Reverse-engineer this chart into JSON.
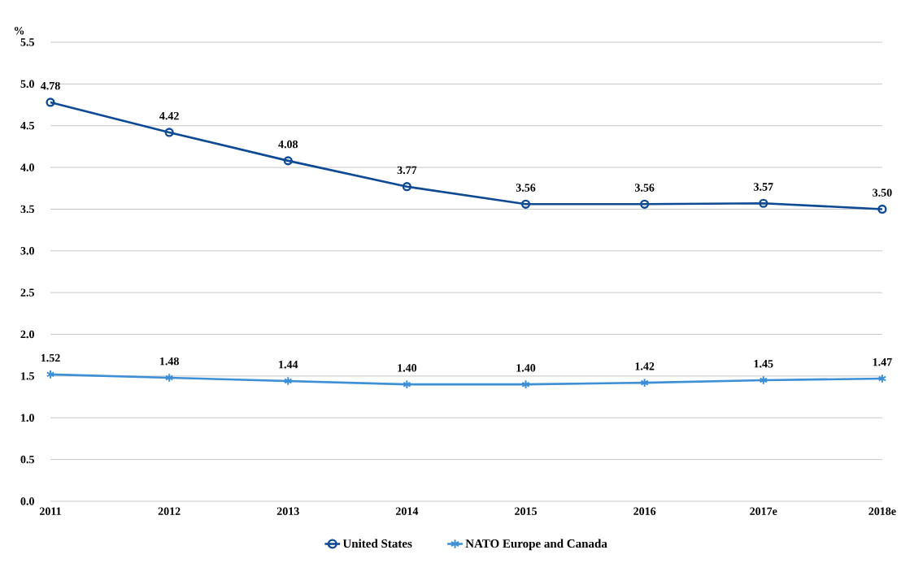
{
  "chart_data": {
    "type": "line",
    "ylabel": "%",
    "categories": [
      "2011",
      "2012",
      "2013",
      "2014",
      "2015",
      "2016",
      "2017e",
      "2018e"
    ],
    "series": [
      {
        "name": "United States",
        "color": "#0e4a94",
        "marker": "circle",
        "values": [
          4.78,
          4.42,
          4.08,
          3.77,
          3.56,
          3.56,
          3.57,
          3.5
        ],
        "value_labels": [
          "4.78",
          "4.42",
          "4.08",
          "3.77",
          "3.56",
          "3.56",
          "3.57",
          "3.50"
        ]
      },
      {
        "name": "NATO Europe and Canada",
        "color": "#3d8fd6",
        "marker": "cross",
        "values": [
          1.52,
          1.48,
          1.44,
          1.4,
          1.4,
          1.42,
          1.45,
          1.47
        ],
        "value_labels": [
          "1.52",
          "1.48",
          "1.44",
          "1.40",
          "1.40",
          "1.42",
          "1.45",
          "1.47"
        ]
      }
    ],
    "ylim": [
      0,
      5.5
    ],
    "yticks": [
      {
        "value": 0,
        "label": "0.0"
      },
      {
        "value": 0.5,
        "label": "0.5"
      },
      {
        "value": 1,
        "label": "1.0"
      },
      {
        "value": 1.5,
        "label": "1.5"
      },
      {
        "value": 2,
        "label": "2.0"
      },
      {
        "value": 2.5,
        "label": "2.5"
      },
      {
        "value": 3,
        "label": "3.0"
      },
      {
        "value": 3.5,
        "label": "3.5"
      },
      {
        "value": 4,
        "label": "4.0"
      },
      {
        "value": 4.5,
        "label": "4.5"
      },
      {
        "value": 5,
        "label": "5.0"
      },
      {
        "value": 5.5,
        "label": "5.5"
      }
    ],
    "grid": "y",
    "legend": "bottom",
    "line_style": "solid"
  }
}
